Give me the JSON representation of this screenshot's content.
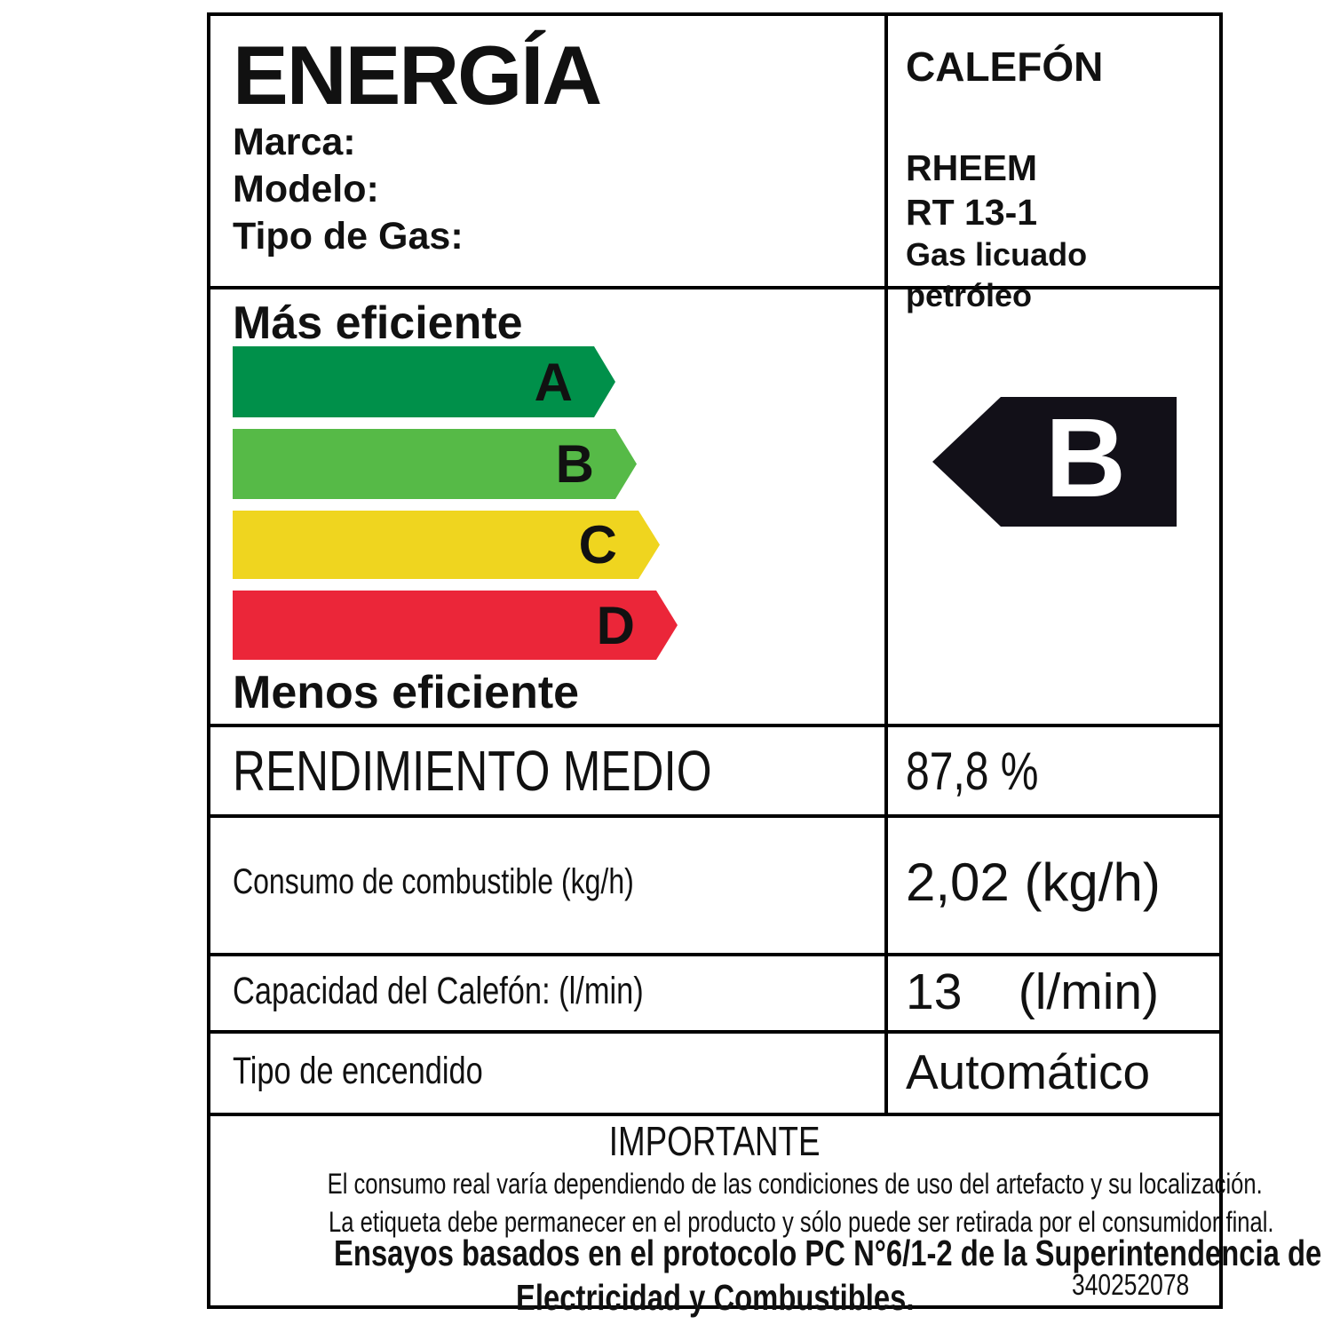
{
  "header": {
    "title": "ENERGÍA",
    "field_marca": "Marca:",
    "field_modelo": "Modelo:",
    "field_gas": "Tipo de Gas:",
    "product_type": "CALEFÓN",
    "brand": "RHEEM",
    "model": "RT 13-1",
    "gas_type": "Gas licuado petróleo"
  },
  "efficiency": {
    "more_efficient_label": "Más eficiente",
    "less_efficient_label": "Menos eficiente",
    "classes": [
      {
        "letter": "A",
        "color": "#00904A"
      },
      {
        "letter": "B",
        "color": "#56BA47"
      },
      {
        "letter": "C",
        "color": "#EFD51F"
      },
      {
        "letter": "D",
        "color": "#EB2639"
      }
    ],
    "rating": {
      "letter": "B",
      "color": "#121018",
      "text_color": "#FFFFFF"
    }
  },
  "specs": [
    {
      "label": "RENDIMIENTO MEDIO",
      "value": "87,8 %"
    },
    {
      "label": "Consumo de combustible (kg/h)",
      "value": "2,02 (kg/h)"
    },
    {
      "label": "Capacidad del Calefón: (l/min)",
      "value": "13    (l/min)"
    },
    {
      "label": "Tipo de encendido",
      "value": "Automático"
    }
  ],
  "important": {
    "heading": "IMPORTANTE",
    "body_line1": "El consumo real varía dependiendo de las condiciones de uso del artefacto y su localización.",
    "body_line2": "La etiqueta debe permanecer en el producto y sólo puede ser retirada por el consumidor final.",
    "protocol_line1": "Ensayos basados en el protocolo PC N°6/1-2 de la Superintendencia de",
    "protocol_line2": "Electricidad y Combustibles.",
    "code": "340252078"
  }
}
